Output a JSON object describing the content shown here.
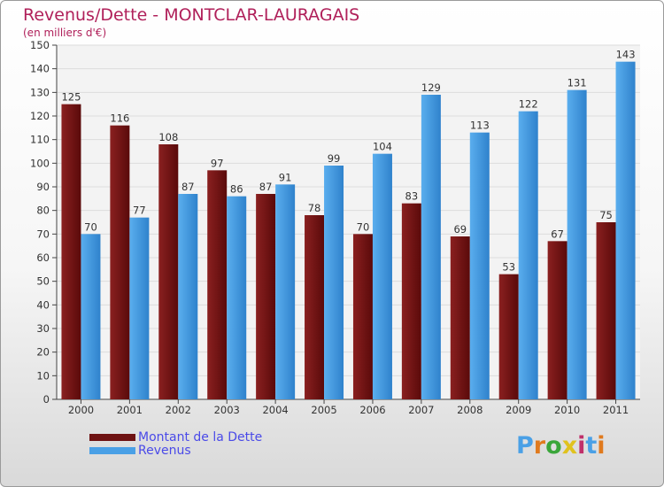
{
  "title": "Revenus/Dette - MONTCLAR-LAURAGAIS",
  "subtitle": "(en milliers d'€)",
  "colors": {
    "dette": "#6e1212",
    "revenus": "#4aa0e6"
  },
  "logo": {
    "text": "Proxiti",
    "letter_colors": [
      "#4aa0e6",
      "#e07a1e",
      "#3aa63a",
      "#e0c21e",
      "#c0306a",
      "#4aa0e6",
      "#e07a1e"
    ]
  },
  "legend": [
    {
      "label": "Montant de la Dette",
      "color": "#6e1212"
    },
    {
      "label": "Revenus",
      "color": "#4aa0e6"
    }
  ],
  "chart_data": {
    "type": "bar",
    "categories": [
      "2000",
      "2001",
      "2002",
      "2003",
      "2004",
      "2005",
      "2006",
      "2007",
      "2008",
      "2009",
      "2010",
      "2011"
    ],
    "series": [
      {
        "name": "Montant de la Dette",
        "values": [
          125,
          116,
          108,
          97,
          87,
          78,
          70,
          83,
          69,
          53,
          67,
          75
        ]
      },
      {
        "name": "Revenus",
        "values": [
          70,
          77,
          87,
          86,
          91,
          99,
          104,
          129,
          113,
          122,
          131,
          143
        ]
      }
    ],
    "title": "Revenus/Dette - MONTCLAR-LAURAGAIS",
    "ylabel": "(en milliers d'€)",
    "ylim": [
      0,
      150
    ],
    "yticks": [
      0,
      10,
      20,
      30,
      40,
      50,
      60,
      70,
      80,
      90,
      100,
      110,
      120,
      130,
      140,
      150
    ],
    "grid": true,
    "legend_position": "bottom-left"
  }
}
